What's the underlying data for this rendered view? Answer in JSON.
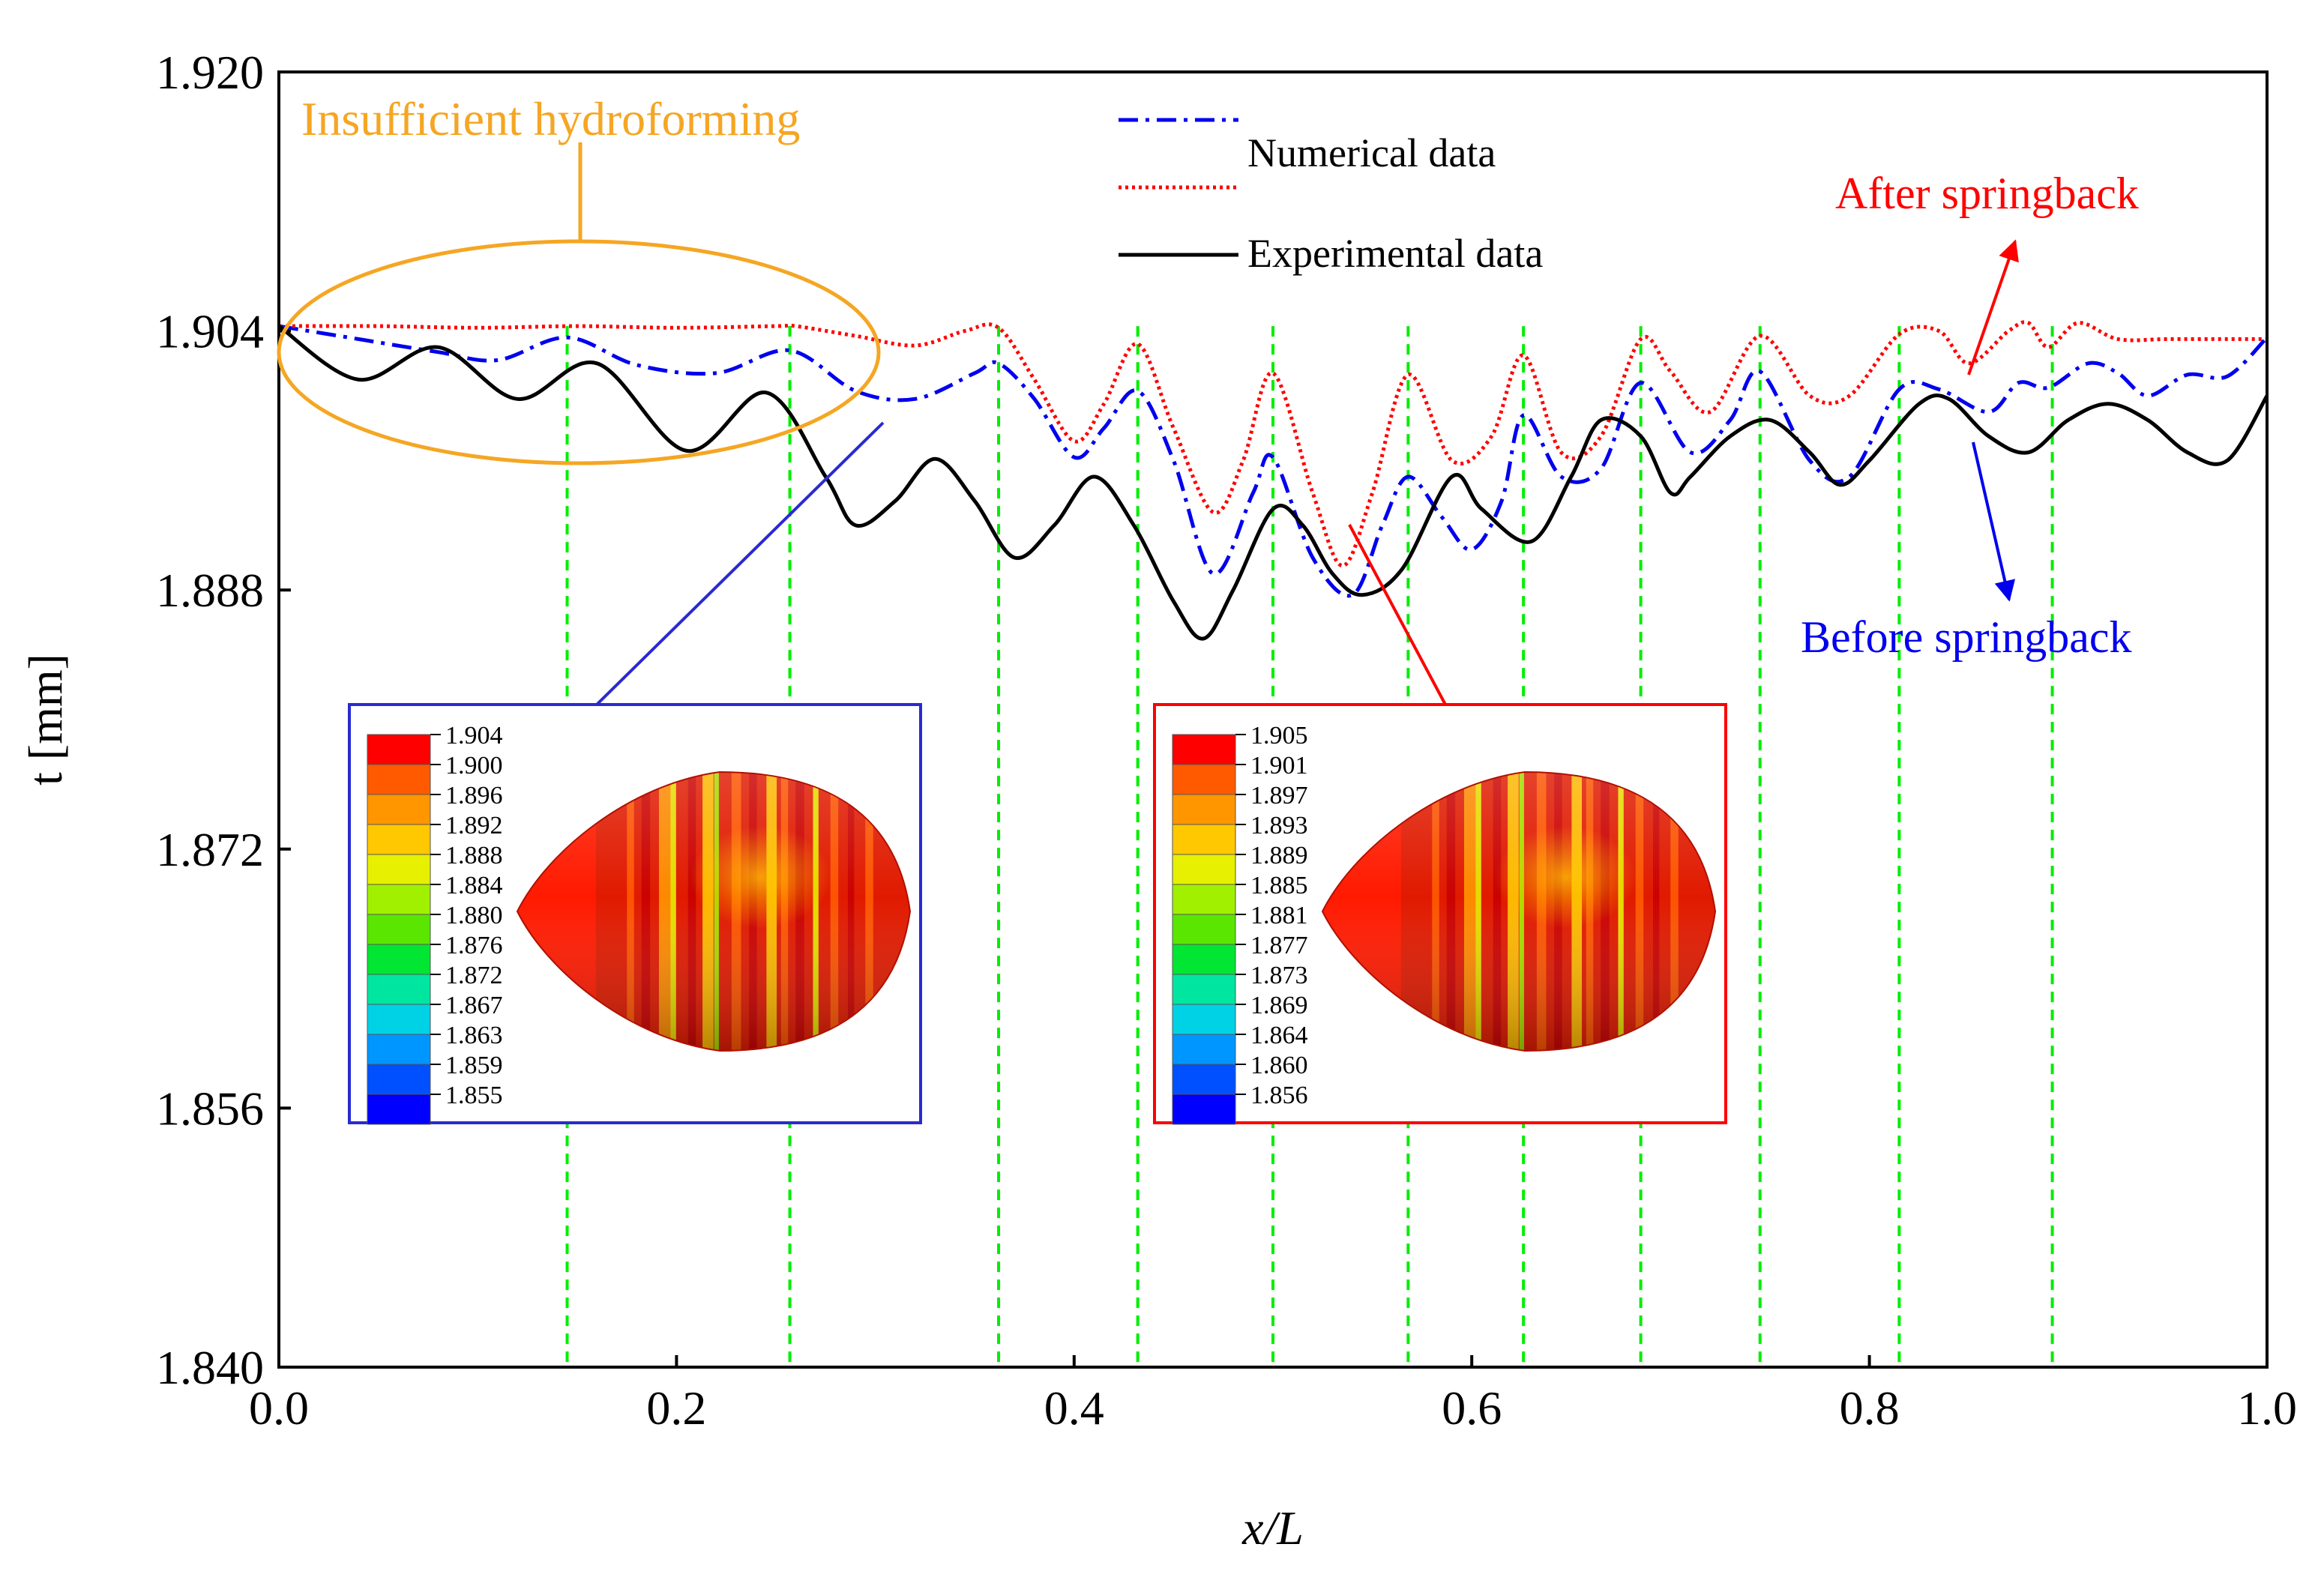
{
  "chart_data": {
    "type": "line",
    "xlabel": "x/L",
    "ylabel": "t [mm]",
    "xlim": [
      0.0,
      1.0
    ],
    "ylim": [
      1.84,
      1.92
    ],
    "xticks": [
      "0.0",
      "0.2",
      "0.4",
      "0.6",
      "0.8",
      "1.0"
    ],
    "yticks": [
      "1.840",
      "1.856",
      "1.872",
      "1.888",
      "1.904",
      "1.920"
    ],
    "grid": false,
    "legend": {
      "position": "top-center",
      "numerical_label": "Numerical data",
      "experimental_label": "Experimental data"
    },
    "series": [
      {
        "name": "Numerical data (before springback)",
        "color": "#0000ee",
        "style": "dash-dot",
        "x": [
          0.0,
          0.04,
          0.08,
          0.11,
          0.145,
          0.18,
          0.22,
          0.257,
          0.29,
          0.32,
          0.35,
          0.362,
          0.38,
          0.4,
          0.415,
          0.432,
          0.45,
          0.47,
          0.49,
          0.5,
          0.52,
          0.54,
          0.555,
          0.568,
          0.585,
          0.6,
          0.615,
          0.626,
          0.645,
          0.665,
          0.685,
          0.71,
          0.73,
          0.745,
          0.77,
          0.79,
          0.815,
          0.835,
          0.86,
          0.875,
          0.89,
          0.91,
          0.925,
          0.94,
          0.96,
          0.98,
          1.0
        ],
        "y": [
          1.9043,
          1.9035,
          1.9027,
          1.9022,
          1.9036,
          1.9019,
          1.9014,
          1.9028,
          1.9003,
          1.8998,
          1.9014,
          1.902,
          1.8998,
          1.8962,
          1.898,
          1.9003,
          1.896,
          1.889,
          1.894,
          1.8962,
          1.89,
          1.8877,
          1.892,
          1.895,
          1.8925,
          1.8905,
          1.8935,
          1.8988,
          1.895,
          1.8955,
          1.9008,
          1.8965,
          1.8985,
          1.9015,
          1.896,
          1.895,
          1.9004,
          1.9004,
          1.899,
          1.9008,
          1.9005,
          1.902,
          1.9014,
          1.9,
          1.9013,
          1.9012,
          1.9036
        ]
      },
      {
        "name": "Numerical data (after springback)",
        "color": "#ff0000",
        "style": "dotted",
        "x": [
          0.0,
          0.05,
          0.1,
          0.15,
          0.2,
          0.25,
          0.26,
          0.29,
          0.32,
          0.345,
          0.362,
          0.38,
          0.4,
          0.415,
          0.432,
          0.45,
          0.47,
          0.485,
          0.5,
          0.52,
          0.535,
          0.55,
          0.568,
          0.59,
          0.61,
          0.626,
          0.645,
          0.665,
          0.685,
          0.7,
          0.72,
          0.745,
          0.77,
          0.79,
          0.815,
          0.835,
          0.85,
          0.87,
          0.88,
          0.89,
          0.905,
          0.925,
          0.95,
          0.98,
          1.0
        ],
        "y": [
          1.9043,
          1.9043,
          1.9042,
          1.9043,
          1.9042,
          1.9043,
          1.9043,
          1.9037,
          1.9031,
          1.904,
          1.9042,
          1.901,
          1.8972,
          1.8995,
          1.9032,
          1.898,
          1.8928,
          1.896,
          1.9014,
          1.894,
          1.8895,
          1.894,
          1.9013,
          1.896,
          1.8975,
          1.9025,
          1.8965,
          1.8975,
          1.9035,
          1.9015,
          1.899,
          1.9037,
          1.9,
          1.9,
          1.9038,
          1.904,
          1.902,
          1.904,
          1.9045,
          1.903,
          1.9045,
          1.9035,
          1.9035,
          1.9035,
          1.9035
        ]
      },
      {
        "name": "Experimental data",
        "color": "#000000",
        "style": "solid",
        "x": [
          0.0,
          0.04,
          0.08,
          0.12,
          0.16,
          0.205,
          0.245,
          0.275,
          0.29,
          0.31,
          0.33,
          0.35,
          0.37,
          0.39,
          0.41,
          0.43,
          0.45,
          0.465,
          0.48,
          0.5,
          0.515,
          0.53,
          0.545,
          0.565,
          0.59,
          0.605,
          0.63,
          0.65,
          0.665,
          0.685,
          0.7,
          0.71,
          0.73,
          0.75,
          0.77,
          0.785,
          0.8,
          0.825,
          0.84,
          0.86,
          0.88,
          0.9,
          0.92,
          0.94,
          0.96,
          0.98,
          1.0
        ],
        "y": [
          1.9043,
          1.901,
          1.903,
          1.8998,
          1.902,
          1.8966,
          1.9002,
          1.895,
          1.892,
          1.8935,
          1.8961,
          1.8935,
          1.89,
          1.892,
          1.895,
          1.892,
          1.8873,
          1.885,
          1.888,
          1.893,
          1.892,
          1.889,
          1.8877,
          1.8893,
          1.895,
          1.893,
          1.891,
          1.895,
          1.8985,
          1.8975,
          1.894,
          1.895,
          1.8975,
          1.8985,
          1.8965,
          1.8945,
          1.896,
          1.8995,
          1.8998,
          1.8975,
          1.8965,
          1.8985,
          1.8995,
          1.8985,
          1.8965,
          1.896,
          1.9
        ]
      }
    ],
    "vertical_guides": {
      "color": "#00ee00",
      "x": [
        0.145,
        0.257,
        0.362,
        0.432,
        0.5,
        0.568,
        0.626,
        0.685,
        0.745,
        0.815,
        0.892
      ]
    },
    "annotations": {
      "insufficient_label": "Insufficient hydroforming",
      "after_label": "After springback",
      "before_label": "Before springback"
    },
    "insets": [
      {
        "name": "before-springback-contour",
        "levels": [
          "1.904",
          "1.900",
          "1.896",
          "1.892",
          "1.888",
          "1.884",
          "1.880",
          "1.876",
          "1.872",
          "1.867",
          "1.863",
          "1.859",
          "1.855"
        ]
      },
      {
        "name": "after-springback-contour",
        "levels": [
          "1.905",
          "1.901",
          "1.897",
          "1.893",
          "1.889",
          "1.885",
          "1.881",
          "1.877",
          "1.873",
          "1.869",
          "1.864",
          "1.860",
          "1.856"
        ]
      }
    ],
    "contour_colors": [
      "#ff0000",
      "#ff5a00",
      "#ff9600",
      "#ffc800",
      "#e6f000",
      "#a0f000",
      "#5ae600",
      "#00e632",
      "#00e6a0",
      "#00d2e6",
      "#0096ff",
      "#0050ff",
      "#0000ff"
    ]
  }
}
